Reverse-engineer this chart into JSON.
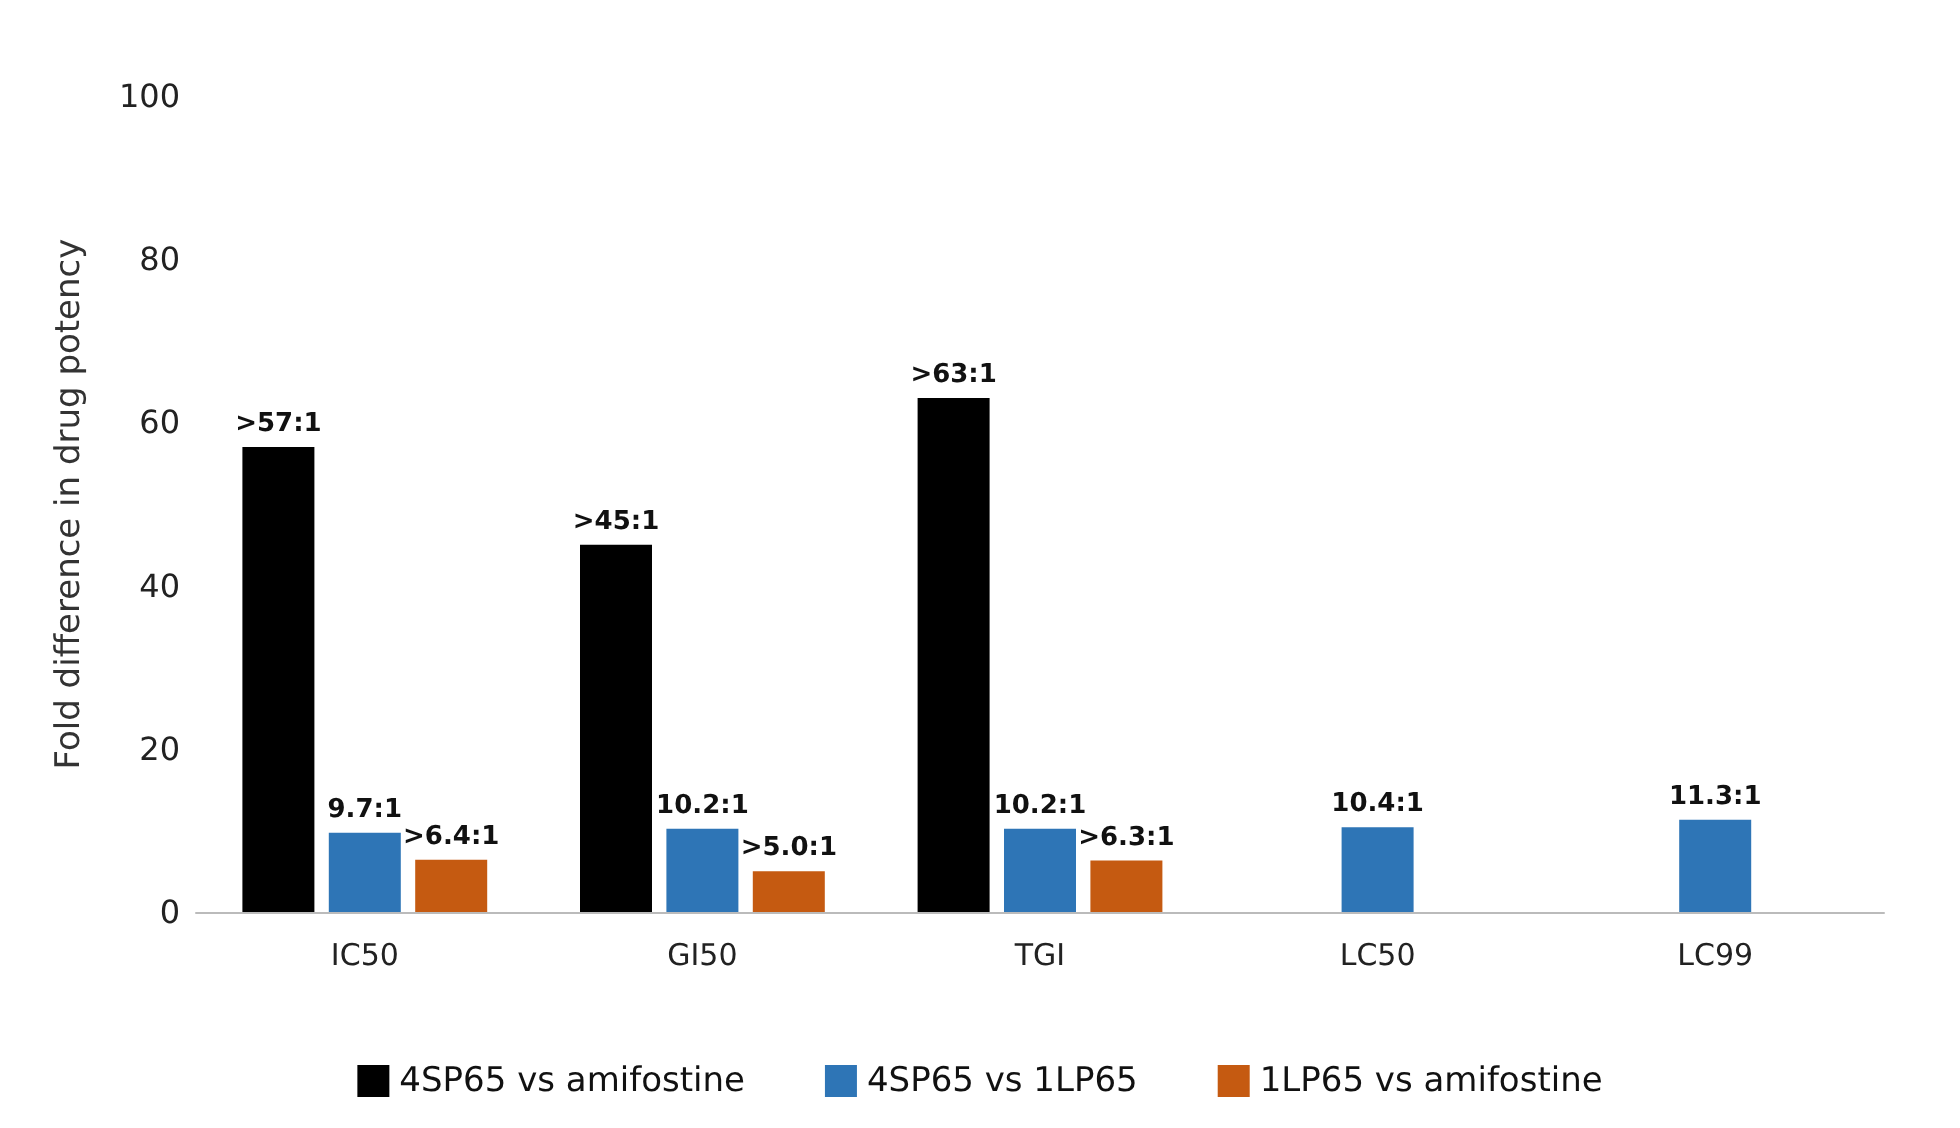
{
  "chart_data": {
    "type": "bar",
    "ylabel": "Fold difference in drug potency",
    "categories": [
      "IC50",
      "GI50",
      "TGI",
      "LC50",
      "LC99"
    ],
    "series": [
      {
        "name": "4SP65 vs amifostine",
        "color": "#000000",
        "values": [
          57,
          45,
          63,
          null,
          null
        ],
        "value_labels": [
          ">57:1",
          ">45:1",
          ">63:1",
          null,
          null
        ]
      },
      {
        "name": "4SP65 vs 1LP65",
        "color": "#2e75b6",
        "values": [
          9.7,
          10.2,
          10.2,
          10.4,
          11.3
        ],
        "value_labels": [
          "9.7:1",
          "10.2:1",
          "10.2:1",
          "10.4:1",
          "11.3:1"
        ]
      },
      {
        "name": "1LP65 vs amifostine",
        "color": "#c55a11",
        "values": [
          6.4,
          5.0,
          6.3,
          null,
          null
        ],
        "value_labels": [
          ">6.4:1",
          ">5.0:1",
          ">6.3:1",
          null,
          null
        ]
      }
    ],
    "ylim": [
      0,
      100
    ],
    "yticks": [
      0,
      20,
      40,
      60,
      80,
      100
    ],
    "grid": false,
    "legend": "bottom"
  }
}
